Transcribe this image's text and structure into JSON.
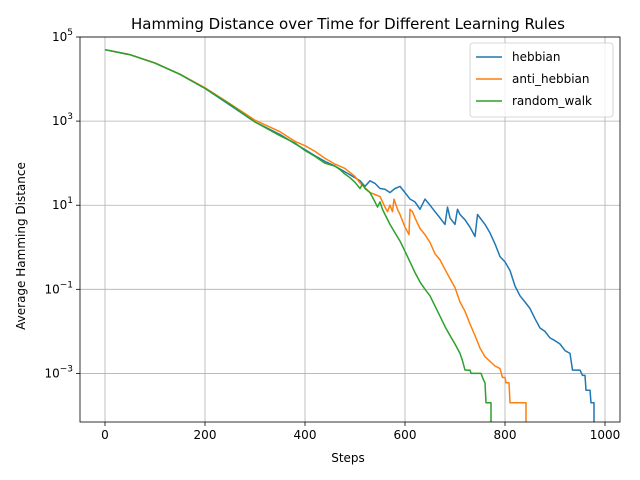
{
  "chart_data": {
    "type": "line",
    "title": "Hamming Distance over Time for Different Learning Rules",
    "xlabel": "Steps",
    "ylabel": "Average Hamming Distance",
    "xscale": "linear",
    "yscale": "log",
    "xlim": [
      -50,
      1030
    ],
    "ylim": [
      7e-05,
      100000
    ],
    "xticks": [
      0,
      200,
      400,
      600,
      800,
      1000
    ],
    "xtick_labels": [
      "0",
      "200",
      "400",
      "600",
      "800",
      "1000"
    ],
    "yticks": [
      0.001,
      0.1,
      10,
      1000,
      100000
    ],
    "ytick_labels": [
      {
        "base": "10",
        "exp": "−3"
      },
      {
        "base": "10",
        "exp": "−1"
      },
      {
        "base": "10",
        "exp": "1"
      },
      {
        "base": "10",
        "exp": "3"
      },
      {
        "base": "10",
        "exp": "5"
      }
    ],
    "grid": true,
    "legend_position": "top-right",
    "series": [
      {
        "name": "hebbian",
        "color": "#1f77b4",
        "points": [
          [
            0,
            50000
          ],
          [
            50,
            38000
          ],
          [
            100,
            24000
          ],
          [
            150,
            13000
          ],
          [
            200,
            6000
          ],
          [
            250,
            2400
          ],
          [
            300,
            950
          ],
          [
            350,
            480
          ],
          [
            380,
            290
          ],
          [
            400,
            210
          ],
          [
            420,
            150
          ],
          [
            440,
            110
          ],
          [
            460,
            85
          ],
          [
            480,
            62
          ],
          [
            500,
            45
          ],
          [
            510,
            38
          ],
          [
            520,
            28
          ],
          [
            530,
            38
          ],
          [
            540,
            33
          ],
          [
            550,
            25
          ],
          [
            560,
            24
          ],
          [
            570,
            20
          ],
          [
            580,
            25
          ],
          [
            590,
            28
          ],
          [
            600,
            20
          ],
          [
            610,
            14
          ],
          [
            620,
            12
          ],
          [
            630,
            8
          ],
          [
            640,
            14
          ],
          [
            650,
            10
          ],
          [
            660,
            7
          ],
          [
            670,
            5
          ],
          [
            680,
            3.5
          ],
          [
            685,
            9
          ],
          [
            690,
            5
          ],
          [
            700,
            3.5
          ],
          [
            705,
            8
          ],
          [
            710,
            6
          ],
          [
            720,
            4.5
          ],
          [
            730,
            3
          ],
          [
            740,
            1.8
          ],
          [
            745,
            6
          ],
          [
            760,
            3.5
          ],
          [
            770,
            2.2
          ],
          [
            780,
            1.2
          ],
          [
            790,
            0.6
          ],
          [
            800,
            0.45
          ],
          [
            810,
            0.28
          ],
          [
            820,
            0.12
          ],
          [
            830,
            0.07
          ],
          [
            840,
            0.05
          ],
          [
            850,
            0.035
          ],
          [
            860,
            0.02
          ],
          [
            870,
            0.012
          ],
          [
            880,
            0.01
          ],
          [
            890,
            0.007
          ],
          [
            900,
            0.006
          ],
          [
            910,
            0.005
          ],
          [
            920,
            0.0035
          ],
          [
            930,
            0.003
          ],
          [
            935,
            0.0012
          ],
          [
            950,
            0.0012
          ],
          [
            955,
            0.0009
          ],
          [
            960,
            0.0009
          ],
          [
            962,
            0.0004
          ],
          [
            970,
            0.0004
          ],
          [
            972,
            0.0002
          ],
          [
            978,
            0.0002
          ],
          [
            978,
            7e-05
          ]
        ]
      },
      {
        "name": "anti_hebbian",
        "color": "#ff7f0e",
        "points": [
          [
            0,
            50000
          ],
          [
            50,
            38000
          ],
          [
            100,
            24000
          ],
          [
            150,
            13000
          ],
          [
            200,
            6200
          ],
          [
            250,
            2600
          ],
          [
            300,
            1050
          ],
          [
            350,
            560
          ],
          [
            380,
            330
          ],
          [
            400,
            260
          ],
          [
            420,
            190
          ],
          [
            440,
            130
          ],
          [
            460,
            95
          ],
          [
            480,
            75
          ],
          [
            500,
            48
          ],
          [
            510,
            34
          ],
          [
            520,
            26
          ],
          [
            530,
            20
          ],
          [
            540,
            18
          ],
          [
            550,
            16
          ],
          [
            560,
            9
          ],
          [
            565,
            7
          ],
          [
            570,
            10
          ],
          [
            575,
            7
          ],
          [
            578,
            14
          ],
          [
            585,
            8
          ],
          [
            590,
            6
          ],
          [
            600,
            3
          ],
          [
            608,
            2
          ],
          [
            610,
            8
          ],
          [
            615,
            7
          ],
          [
            620,
            5
          ],
          [
            630,
            2.8
          ],
          [
            640,
            2
          ],
          [
            650,
            1.3
          ],
          [
            660,
            0.7
          ],
          [
            670,
            0.5
          ],
          [
            680,
            0.3
          ],
          [
            690,
            0.18
          ],
          [
            700,
            0.11
          ],
          [
            710,
            0.05
          ],
          [
            720,
            0.03
          ],
          [
            730,
            0.015
          ],
          [
            740,
            0.008
          ],
          [
            750,
            0.004
          ],
          [
            760,
            0.0025
          ],
          [
            780,
            0.0015
          ],
          [
            790,
            0.0013
          ],
          [
            795,
            0.0008
          ],
          [
            800,
            0.0008
          ],
          [
            802,
            0.0006
          ],
          [
            808,
            0.0006
          ],
          [
            810,
            0.0002
          ],
          [
            842,
            0.0002
          ],
          [
            842,
            7e-05
          ]
        ]
      },
      {
        "name": "random_walk",
        "color": "#2ca02c",
        "points": [
          [
            0,
            50000
          ],
          [
            50,
            38000
          ],
          [
            100,
            24000
          ],
          [
            150,
            13000
          ],
          [
            200,
            6000
          ],
          [
            250,
            2500
          ],
          [
            300,
            950
          ],
          [
            350,
            450
          ],
          [
            380,
            300
          ],
          [
            400,
            200
          ],
          [
            420,
            145
          ],
          [
            440,
            100
          ],
          [
            460,
            85
          ],
          [
            470,
            70
          ],
          [
            480,
            55
          ],
          [
            490,
            45
          ],
          [
            500,
            35
          ],
          [
            510,
            25
          ],
          [
            515,
            32
          ],
          [
            520,
            25
          ],
          [
            530,
            20
          ],
          [
            540,
            12
          ],
          [
            545,
            9
          ],
          [
            550,
            12
          ],
          [
            555,
            8
          ],
          [
            560,
            6
          ],
          [
            570,
            3.5
          ],
          [
            580,
            2.2
          ],
          [
            590,
            1.4
          ],
          [
            600,
            0.8
          ],
          [
            610,
            0.45
          ],
          [
            620,
            0.25
          ],
          [
            630,
            0.15
          ],
          [
            640,
            0.1
          ],
          [
            650,
            0.07
          ],
          [
            660,
            0.04
          ],
          [
            670,
            0.023
          ],
          [
            680,
            0.013
          ],
          [
            690,
            0.008
          ],
          [
            700,
            0.005
          ],
          [
            710,
            0.003
          ],
          [
            715,
            0.002
          ],
          [
            720,
            0.0012
          ],
          [
            730,
            0.0012
          ],
          [
            732,
            0.001
          ],
          [
            752,
            0.001
          ],
          [
            757,
            0.0007
          ],
          [
            760,
            0.0006
          ],
          [
            762,
            0.0002
          ],
          [
            772,
            0.0002
          ],
          [
            772,
            7e-05
          ]
        ]
      }
    ]
  }
}
